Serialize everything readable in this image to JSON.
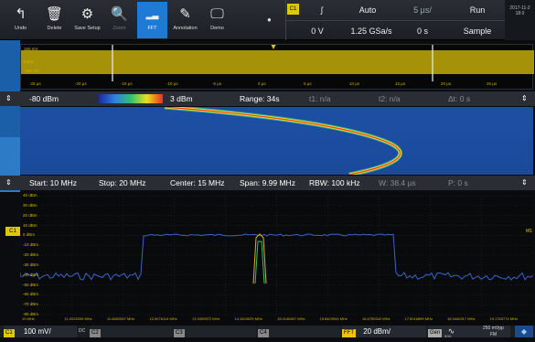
{
  "toolbar": {
    "buttons": [
      {
        "label": "Undo",
        "icon": "undo-icon",
        "glyph": "↰"
      },
      {
        "label": "Delete",
        "icon": "trash-icon",
        "glyph": "🗑"
      },
      {
        "label": "Save Setup",
        "icon": "save-setup-icon",
        "glyph": "⚙"
      },
      {
        "label": "Zoom",
        "icon": "zoom-icon",
        "glyph": "🔍"
      },
      {
        "label": "FFT",
        "icon": "fft-icon",
        "glyph": "▂▃"
      },
      {
        "label": "Annotation",
        "icon": "pen-icon",
        "glyph": "✎"
      },
      {
        "label": "Demo",
        "icon": "demo-icon",
        "glyph": "🖵"
      }
    ],
    "trigger_dot": "●"
  },
  "acquisition": {
    "channel": "C1",
    "slope": "∫",
    "mode": "Auto",
    "time_per_div": "5 µs/",
    "run": "Run",
    "level": "0 V",
    "sample_rate": "1.25 GSa/s",
    "offset": "0 s",
    "acq_mode": "Sample"
  },
  "clock": {
    "date": "2017-11-2",
    "time": "18:0"
  },
  "waveform": {
    "y_labels": [
      "150 mV",
      "0 mV",
      "-150 mV"
    ],
    "x_labels": [
      "-25 µs",
      "-20 µs",
      "-15 µs",
      "-10 µs",
      "-5 µs",
      "0 µs",
      "5 µs",
      "10 µs",
      "15 µs",
      "20 µs",
      "25 µs"
    ]
  },
  "spectrogram_bar": {
    "min": "-80 dBm",
    "max": "3 dBm",
    "range": "Range: 34s",
    "t1": "t1: n/a",
    "t2": "t2: n/a",
    "dt": "Δt: 0 s"
  },
  "spectrum_bar": {
    "start": "Start: 10 MHz",
    "stop": "Stop: 20 MHz",
    "center": "Center: 15 MHz",
    "span": "Span: 9.99 MHz",
    "rbw": "RBW: 100 kHz",
    "w": "W: 38.4 µs",
    "p": "P: 0 s"
  },
  "spectrum": {
    "y_labels": [
      "40 dBm",
      "30 dBm",
      "20 dBm",
      "10 dBm",
      "0 dBm",
      "-10 dBm",
      "-20 dBm",
      "-30 dBm",
      "-40 dBm",
      "-50 dBm",
      "-60 dBm",
      "-70 dBm",
      "-80 dBm"
    ],
    "x_labels": [
      "10 MHz",
      "11.0025339 MHz",
      "11.6652067 MHz",
      "12.5076114 MHz",
      "13.3409572 MHz",
      "14.1603025 MHz",
      "15.0148407 MHz",
      "15.8403944 MHz",
      "16.6750342 MHz",
      "17.5016899 MHz",
      "18.3440317 MHz",
      "19.1763774 MHz"
    ],
    "left_marker": "C1",
    "right_marker": "M1"
  },
  "bottom": {
    "c1_label": "C1",
    "c1_value": "100 mV/",
    "dc": "DC",
    "c2": "C2",
    "c3": "C3",
    "c4": "C4",
    "fft": "FFT",
    "fft_value": "20 dBm/",
    "gen": "Gen",
    "gen_amp": "250 mVpp",
    "gen_func": "FM",
    "gen_sub": "50Ω"
  },
  "colors": {
    "accent": "#1f7ad6",
    "channel1": "#e0c800",
    "fft": "#f2c400",
    "spectrum_trace": "#3c63c9"
  }
}
